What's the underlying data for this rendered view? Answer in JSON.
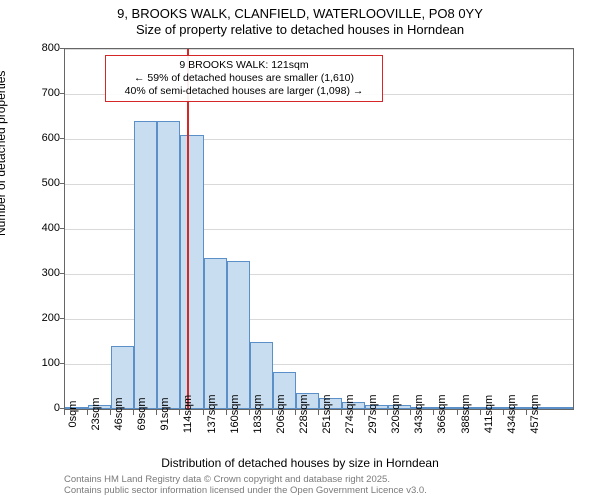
{
  "header": {
    "line1": "9, BROOKS WALK, CLANFIELD, WATERLOOVILLE, PO8 0YY",
    "line2": "Size of property relative to detached houses in Horndean"
  },
  "chart": {
    "type": "histogram",
    "ylabel": "Number of detached properties",
    "xlabel": "Distribution of detached houses by size in Horndean",
    "ylim": [
      0,
      800
    ],
    "ytick_step": 100,
    "x_category_width": 22.857,
    "x_tick_labels": [
      "0sqm",
      "23sqm",
      "46sqm",
      "69sqm",
      "91sqm",
      "114sqm",
      "137sqm",
      "160sqm",
      "183sqm",
      "206sqm",
      "228sqm",
      "251sqm",
      "274sqm",
      "297sqm",
      "320sqm",
      "343sqm",
      "366sqm",
      "388sqm",
      "411sqm",
      "434sqm",
      "457sqm"
    ],
    "bar_fill": "#c9ddf0",
    "bar_stroke": "#5b8fc7",
    "grid_color": "#d9d9d9",
    "background_color": "#ffffff",
    "values": [
      2,
      8,
      140,
      640,
      640,
      610,
      335,
      330,
      150,
      82,
      35,
      25,
      15,
      10,
      8,
      4,
      3,
      2,
      2,
      1,
      1,
      0
    ],
    "marker": {
      "x_value": 121,
      "color": "#d62728"
    },
    "annotation": {
      "line1": "9 BROOKS WALK: 121sqm",
      "line2": "← 59% of detached houses are smaller (1,610)",
      "line3": "40% of semi-detached houses are larger (1,098) →",
      "border_color": "#d62728"
    },
    "axis_label_fontsize": 12,
    "tick_fontsize": 11
  },
  "footer": {
    "line1": "Contains HM Land Registry data © Crown copyright and database right 2025.",
    "line2": "Contains public sector information licensed under the Open Government Licence v3.0."
  }
}
